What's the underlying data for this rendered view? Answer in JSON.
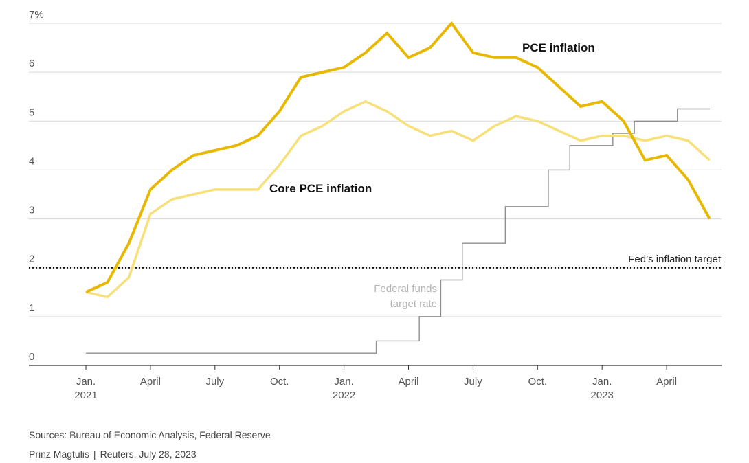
{
  "chart_data": {
    "type": "line",
    "ylim": [
      0,
      7
    ],
    "y_ticks": [
      {
        "value": 0,
        "label": "0"
      },
      {
        "value": 1,
        "label": "1"
      },
      {
        "value": 2,
        "label": "2"
      },
      {
        "value": 3,
        "label": "3"
      },
      {
        "value": 4,
        "label": "4"
      },
      {
        "value": 5,
        "label": "5"
      },
      {
        "value": 6,
        "label": "6"
      },
      {
        "value": 7,
        "label": "7%"
      }
    ],
    "x_ticks": [
      {
        "month_index": 0,
        "line1": "Jan.",
        "line2": "2021"
      },
      {
        "month_index": 3,
        "line1": "April",
        "line2": ""
      },
      {
        "month_index": 6,
        "line1": "July",
        "line2": ""
      },
      {
        "month_index": 9,
        "line1": "Oct.",
        "line2": ""
      },
      {
        "month_index": 12,
        "line1": "Jan.",
        "line2": "2022"
      },
      {
        "month_index": 15,
        "line1": "April",
        "line2": ""
      },
      {
        "month_index": 18,
        "line1": "July",
        "line2": ""
      },
      {
        "month_index": 21,
        "line1": "Oct.",
        "line2": ""
      },
      {
        "month_index": 24,
        "line1": "Jan.",
        "line2": "2023"
      },
      {
        "month_index": 27,
        "line1": "April",
        "line2": ""
      }
    ],
    "series": [
      {
        "name": "PCE inflation",
        "color": "#e8b800",
        "values": [
          1.5,
          1.7,
          2.5,
          3.6,
          4.0,
          4.3,
          4.4,
          4.5,
          4.7,
          5.2,
          5.9,
          6.0,
          6.1,
          6.4,
          6.8,
          6.3,
          6.5,
          7.0,
          6.4,
          6.3,
          6.3,
          6.1,
          5.7,
          5.3,
          5.4,
          5.0,
          4.2,
          4.3,
          3.8,
          3.0
        ]
      },
      {
        "name": "Core PCE inflation",
        "color": "#f7df7a",
        "values": [
          1.5,
          1.4,
          1.8,
          3.1,
          3.4,
          3.5,
          3.6,
          3.6,
          3.6,
          4.1,
          4.7,
          4.9,
          5.2,
          5.4,
          5.2,
          4.9,
          4.7,
          4.8,
          4.6,
          4.9,
          5.1,
          5.0,
          4.8,
          4.6,
          4.7,
          4.7,
          4.6,
          4.7,
          4.6,
          4.2
        ]
      },
      {
        "name": "Federal funds target rate",
        "color": "#8f8f8f",
        "type": "step",
        "steps": [
          {
            "from": 0,
            "to": 13.5,
            "value": 0.25
          },
          {
            "from": 13.5,
            "to": 15.5,
            "value": 0.5
          },
          {
            "from": 15.5,
            "to": 16.5,
            "value": 1.0
          },
          {
            "from": 16.5,
            "to": 17.5,
            "value": 1.75
          },
          {
            "from": 17.5,
            "to": 19.5,
            "value": 2.5
          },
          {
            "from": 19.5,
            "to": 21.5,
            "value": 3.25
          },
          {
            "from": 21.5,
            "to": 22.5,
            "value": 4.0
          },
          {
            "from": 22.5,
            "to": 24.5,
            "value": 4.5
          },
          {
            "from": 24.5,
            "to": 25.5,
            "value": 4.75
          },
          {
            "from": 25.5,
            "to": 27.5,
            "value": 5.0
          },
          {
            "from": 27.5,
            "to": 29.0,
            "value": 5.25
          }
        ]
      }
    ],
    "reference_line": {
      "value": 2,
      "label": "Fed’s inflation target"
    },
    "annotations": {
      "pce_label": "PCE inflation",
      "core_label": "Core PCE inflation",
      "fed_label_line1": "Federal funds",
      "fed_label_line2": "target rate"
    }
  },
  "footer": {
    "sources": "Sources: Bureau of Economic Analysis, Federal Reserve",
    "author": "Prinz Magtulis",
    "separator": "|",
    "publisher_date": "Reuters, July 28, 2023"
  }
}
